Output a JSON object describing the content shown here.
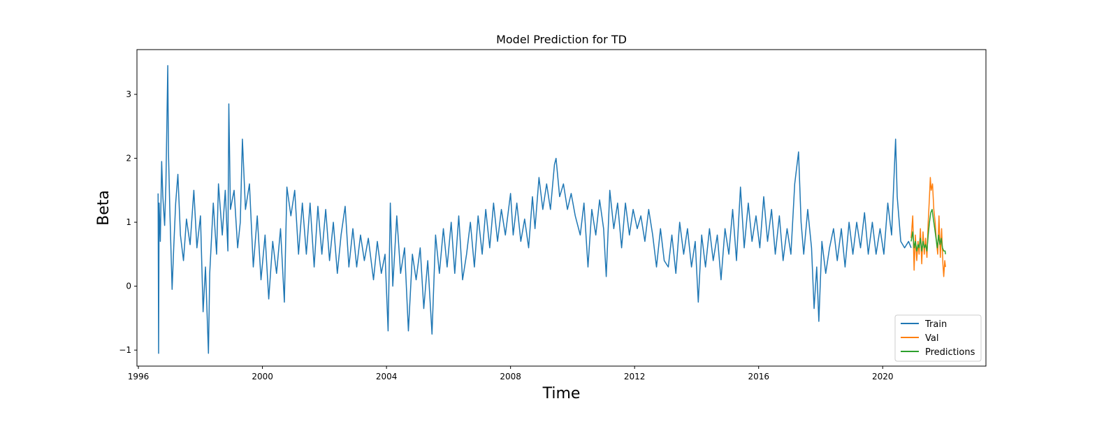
{
  "chart_data": {
    "type": "line",
    "title": "Model Prediction for TD",
    "xlabel": "Time",
    "ylabel": "Beta",
    "xlim": [
      "1995-12-15",
      "2023-05-01"
    ],
    "ylim": [
      -1.25,
      3.7
    ],
    "x_ticks": [
      "1996",
      "2000",
      "2004",
      "2008",
      "2012",
      "2016",
      "2020"
    ],
    "y_ticks": [
      -1,
      0,
      1,
      2,
      3
    ],
    "y_tick_labels": [
      "−1",
      "0",
      "1",
      "2",
      "3"
    ],
    "grid": false,
    "legend_position": "lower-right",
    "series": [
      {
        "name": "Train",
        "color": "#1f77b4",
        "points": [
          [
            "1996-08-20",
            1.45
          ],
          [
            "1996-08-26",
            -1.05
          ],
          [
            "1996-09-01",
            1.3
          ],
          [
            "1996-09-15",
            0.7
          ],
          [
            "1996-10-01",
            1.95
          ],
          [
            "1996-10-15",
            1.4
          ],
          [
            "1996-11-05",
            0.95
          ],
          [
            "1996-11-20",
            1.6
          ],
          [
            "1996-12-05",
            2.85
          ],
          [
            "1996-12-12",
            3.45
          ],
          [
            "1996-12-20",
            2.1
          ],
          [
            "1997-01-05",
            1.2
          ],
          [
            "1997-02-01",
            -0.05
          ],
          [
            "1997-02-20",
            0.6
          ],
          [
            "1997-03-15",
            1.3
          ],
          [
            "1997-04-10",
            1.75
          ],
          [
            "1997-05-10",
            0.8
          ],
          [
            "1997-06-15",
            0.4
          ],
          [
            "1997-07-20",
            1.05
          ],
          [
            "1997-09-01",
            0.65
          ],
          [
            "1997-10-15",
            1.5
          ],
          [
            "1997-11-20",
            0.6
          ],
          [
            "1998-01-01",
            1.1
          ],
          [
            "1998-02-01",
            -0.4
          ],
          [
            "1998-03-01",
            0.3
          ],
          [
            "1998-04-05",
            -1.05
          ],
          [
            "1998-04-20",
            0.2
          ],
          [
            "1998-06-01",
            1.3
          ],
          [
            "1998-07-10",
            0.5
          ],
          [
            "1998-08-01",
            1.6
          ],
          [
            "1998-09-15",
            0.8
          ],
          [
            "1998-10-20",
            1.5
          ],
          [
            "1998-11-20",
            0.55
          ],
          [
            "1998-12-01",
            2.85
          ],
          [
            "1998-12-20",
            1.2
          ],
          [
            "1999-02-01",
            1.5
          ],
          [
            "1999-03-15",
            0.6
          ],
          [
            "1999-04-15",
            1.0
          ],
          [
            "1999-05-10",
            2.3
          ],
          [
            "1999-06-15",
            1.2
          ],
          [
            "1999-08-01",
            1.6
          ],
          [
            "1999-09-15",
            0.3
          ],
          [
            "1999-11-01",
            1.1
          ],
          [
            "1999-12-15",
            0.1
          ],
          [
            "2000-02-01",
            0.8
          ],
          [
            "2000-03-15",
            -0.2
          ],
          [
            "2000-05-01",
            0.7
          ],
          [
            "2000-06-15",
            0.2
          ],
          [
            "2000-08-01",
            0.9
          ],
          [
            "2000-09-15",
            -0.25
          ],
          [
            "2000-10-15",
            1.55
          ],
          [
            "2000-12-01",
            1.1
          ],
          [
            "2001-01-15",
            1.5
          ],
          [
            "2001-03-01",
            0.5
          ],
          [
            "2001-04-15",
            1.3
          ],
          [
            "2001-06-01",
            0.5
          ],
          [
            "2001-07-15",
            1.3
          ],
          [
            "2001-09-01",
            0.3
          ],
          [
            "2001-10-15",
            1.25
          ],
          [
            "2001-12-01",
            0.5
          ],
          [
            "2002-01-15",
            1.2
          ],
          [
            "2002-03-01",
            0.4
          ],
          [
            "2002-04-15",
            1.0
          ],
          [
            "2002-06-01",
            0.2
          ],
          [
            "2002-07-15",
            0.8
          ],
          [
            "2002-09-01",
            1.25
          ],
          [
            "2002-10-15",
            0.3
          ],
          [
            "2002-12-01",
            0.9
          ],
          [
            "2003-01-15",
            0.3
          ],
          [
            "2003-03-01",
            0.8
          ],
          [
            "2003-04-15",
            0.4
          ],
          [
            "2003-06-01",
            0.75
          ],
          [
            "2003-08-01",
            0.1
          ],
          [
            "2003-09-15",
            0.7
          ],
          [
            "2003-11-01",
            0.2
          ],
          [
            "2003-12-15",
            0.5
          ],
          [
            "2004-01-20",
            -0.7
          ],
          [
            "2004-02-15",
            1.3
          ],
          [
            "2004-03-15",
            0.0
          ],
          [
            "2004-05-01",
            1.1
          ],
          [
            "2004-06-15",
            0.2
          ],
          [
            "2004-08-01",
            0.6
          ],
          [
            "2004-09-15",
            -0.7
          ],
          [
            "2004-11-01",
            0.5
          ],
          [
            "2004-12-15",
            0.1
          ],
          [
            "2005-02-01",
            0.6
          ],
          [
            "2005-03-15",
            -0.35
          ],
          [
            "2005-05-01",
            0.4
          ],
          [
            "2005-06-20",
            -0.75
          ],
          [
            "2005-08-01",
            0.8
          ],
          [
            "2005-09-15",
            0.2
          ],
          [
            "2005-11-01",
            0.9
          ],
          [
            "2005-12-15",
            0.3
          ],
          [
            "2006-02-01",
            1.0
          ],
          [
            "2006-03-15",
            0.2
          ],
          [
            "2006-05-01",
            1.1
          ],
          [
            "2006-06-15",
            0.1
          ],
          [
            "2006-08-01",
            0.5
          ],
          [
            "2006-09-15",
            1.0
          ],
          [
            "2006-11-01",
            0.3
          ],
          [
            "2006-12-15",
            1.1
          ],
          [
            "2007-02-01",
            0.5
          ],
          [
            "2007-03-15",
            1.2
          ],
          [
            "2007-05-01",
            0.6
          ],
          [
            "2007-06-15",
            1.3
          ],
          [
            "2007-08-01",
            0.7
          ],
          [
            "2007-09-15",
            1.2
          ],
          [
            "2007-11-01",
            0.8
          ],
          [
            "2008-01-01",
            1.45
          ],
          [
            "2008-02-01",
            0.8
          ],
          [
            "2008-03-15",
            1.3
          ],
          [
            "2008-05-01",
            0.7
          ],
          [
            "2008-06-15",
            1.05
          ],
          [
            "2008-08-01",
            0.6
          ],
          [
            "2008-09-15",
            1.4
          ],
          [
            "2008-10-15",
            0.9
          ],
          [
            "2008-12-01",
            1.7
          ],
          [
            "2009-01-15",
            1.2
          ],
          [
            "2009-03-01",
            1.6
          ],
          [
            "2009-04-15",
            1.2
          ],
          [
            "2009-06-01",
            1.9
          ],
          [
            "2009-06-20",
            2.0
          ],
          [
            "2009-08-01",
            1.4
          ],
          [
            "2009-09-15",
            1.6
          ],
          [
            "2009-11-01",
            1.2
          ],
          [
            "2009-12-15",
            1.45
          ],
          [
            "2010-02-01",
            1.1
          ],
          [
            "2010-04-01",
            0.8
          ],
          [
            "2010-05-15",
            1.3
          ],
          [
            "2010-07-01",
            0.3
          ],
          [
            "2010-08-15",
            1.2
          ],
          [
            "2010-10-01",
            0.8
          ],
          [
            "2010-11-15",
            1.35
          ],
          [
            "2011-01-01",
            0.9
          ],
          [
            "2011-02-01",
            0.15
          ],
          [
            "2011-03-15",
            1.5
          ],
          [
            "2011-05-01",
            0.9
          ],
          [
            "2011-06-15",
            1.3
          ],
          [
            "2011-08-01",
            0.6
          ],
          [
            "2011-09-15",
            1.3
          ],
          [
            "2011-11-01",
            0.8
          ],
          [
            "2011-12-15",
            1.2
          ],
          [
            "2012-02-01",
            0.9
          ],
          [
            "2012-03-15",
            1.1
          ],
          [
            "2012-05-01",
            0.7
          ],
          [
            "2012-06-15",
            1.2
          ],
          [
            "2012-08-01",
            0.8
          ],
          [
            "2012-09-15",
            0.3
          ],
          [
            "2012-11-01",
            0.9
          ],
          [
            "2012-12-15",
            0.4
          ],
          [
            "2013-02-01",
            0.3
          ],
          [
            "2013-03-15",
            0.8
          ],
          [
            "2013-05-01",
            0.2
          ],
          [
            "2013-06-15",
            1.0
          ],
          [
            "2013-08-01",
            0.5
          ],
          [
            "2013-09-15",
            0.9
          ],
          [
            "2013-11-01",
            0.3
          ],
          [
            "2013-12-15",
            0.7
          ],
          [
            "2014-01-20",
            -0.25
          ],
          [
            "2014-03-01",
            0.8
          ],
          [
            "2014-04-15",
            0.3
          ],
          [
            "2014-06-01",
            0.9
          ],
          [
            "2014-07-15",
            0.4
          ],
          [
            "2014-09-01",
            0.8
          ],
          [
            "2014-10-15",
            0.1
          ],
          [
            "2014-12-01",
            0.9
          ],
          [
            "2015-01-15",
            0.5
          ],
          [
            "2015-03-01",
            1.2
          ],
          [
            "2015-04-15",
            0.4
          ],
          [
            "2015-06-01",
            1.55
          ],
          [
            "2015-07-15",
            0.6
          ],
          [
            "2015-09-01",
            1.3
          ],
          [
            "2015-10-15",
            0.7
          ],
          [
            "2015-12-01",
            1.1
          ],
          [
            "2016-01-15",
            0.6
          ],
          [
            "2016-03-01",
            1.4
          ],
          [
            "2016-04-15",
            0.7
          ],
          [
            "2016-06-01",
            1.2
          ],
          [
            "2016-07-15",
            0.5
          ],
          [
            "2016-09-01",
            1.1
          ],
          [
            "2016-10-15",
            0.4
          ],
          [
            "2016-12-01",
            0.9
          ],
          [
            "2017-01-15",
            0.5
          ],
          [
            "2017-03-01",
            1.6
          ],
          [
            "2017-04-15",
            2.1
          ],
          [
            "2017-05-15",
            1.0
          ],
          [
            "2017-06-15",
            0.5
          ],
          [
            "2017-08-01",
            1.2
          ],
          [
            "2017-09-15",
            0.6
          ],
          [
            "2017-10-15",
            -0.35
          ],
          [
            "2017-11-15",
            0.3
          ],
          [
            "2017-12-10",
            -0.55
          ],
          [
            "2018-01-15",
            0.7
          ],
          [
            "2018-03-01",
            0.2
          ],
          [
            "2018-04-15",
            0.6
          ],
          [
            "2018-06-01",
            0.9
          ],
          [
            "2018-07-15",
            0.4
          ],
          [
            "2018-09-01",
            0.9
          ],
          [
            "2018-10-15",
            0.3
          ],
          [
            "2018-12-01",
            1.0
          ],
          [
            "2019-01-15",
            0.5
          ],
          [
            "2019-03-01",
            1.0
          ],
          [
            "2019-04-15",
            0.6
          ],
          [
            "2019-06-01",
            1.15
          ],
          [
            "2019-07-15",
            0.5
          ],
          [
            "2019-09-01",
            1.0
          ],
          [
            "2019-10-15",
            0.5
          ],
          [
            "2019-12-01",
            0.9
          ],
          [
            "2020-01-15",
            0.5
          ],
          [
            "2020-03-01",
            1.3
          ],
          [
            "2020-04-15",
            0.8
          ],
          [
            "2020-06-01",
            2.3
          ],
          [
            "2020-06-20",
            1.4
          ],
          [
            "2020-08-01",
            0.7
          ],
          [
            "2020-09-15",
            0.6
          ],
          [
            "2020-11-01",
            0.7
          ],
          [
            "2020-12-01",
            0.6
          ]
        ]
      },
      {
        "name": "Val",
        "color": "#ff7f0e",
        "points": [
          [
            "2020-12-01",
            0.75
          ],
          [
            "2020-12-20",
            1.1
          ],
          [
            "2021-01-05",
            0.25
          ],
          [
            "2021-01-20",
            0.8
          ],
          [
            "2021-02-05",
            0.4
          ],
          [
            "2021-02-20",
            0.7
          ],
          [
            "2021-03-05",
            0.5
          ],
          [
            "2021-03-20",
            0.9
          ],
          [
            "2021-04-05",
            0.35
          ],
          [
            "2021-04-20",
            0.85
          ],
          [
            "2021-05-05",
            0.5
          ],
          [
            "2021-05-20",
            0.75
          ],
          [
            "2021-06-05",
            0.45
          ],
          [
            "2021-06-20",
            1.0
          ],
          [
            "2021-07-05",
            1.4
          ],
          [
            "2021-07-15",
            1.7
          ],
          [
            "2021-07-25",
            1.5
          ],
          [
            "2021-08-10",
            1.6
          ],
          [
            "2021-08-25",
            1.2
          ],
          [
            "2021-09-10",
            1.0
          ],
          [
            "2021-09-25",
            0.7
          ],
          [
            "2021-10-10",
            0.5
          ],
          [
            "2021-10-25",
            1.1
          ],
          [
            "2021-11-10",
            0.45
          ],
          [
            "2021-11-25",
            0.9
          ],
          [
            "2021-12-10",
            0.35
          ],
          [
            "2021-12-20",
            0.15
          ],
          [
            "2022-01-01",
            0.4
          ],
          [
            "2022-01-10",
            0.3
          ]
        ]
      },
      {
        "name": "Predictions",
        "color": "#2ca02c",
        "points": [
          [
            "2020-12-01",
            0.7
          ],
          [
            "2020-12-20",
            0.85
          ],
          [
            "2021-01-05",
            0.6
          ],
          [
            "2021-01-20",
            0.7
          ],
          [
            "2021-02-05",
            0.55
          ],
          [
            "2021-02-20",
            0.65
          ],
          [
            "2021-03-05",
            0.6
          ],
          [
            "2021-03-20",
            0.75
          ],
          [
            "2021-04-05",
            0.55
          ],
          [
            "2021-04-20",
            0.7
          ],
          [
            "2021-05-05",
            0.6
          ],
          [
            "2021-05-20",
            0.65
          ],
          [
            "2021-06-05",
            0.55
          ],
          [
            "2021-06-20",
            0.8
          ],
          [
            "2021-07-05",
            1.0
          ],
          [
            "2021-07-20",
            1.15
          ],
          [
            "2021-08-05",
            1.2
          ],
          [
            "2021-08-20",
            1.05
          ],
          [
            "2021-09-05",
            0.9
          ],
          [
            "2021-09-20",
            0.75
          ],
          [
            "2021-10-05",
            0.6
          ],
          [
            "2021-10-20",
            0.8
          ],
          [
            "2021-11-05",
            0.65
          ],
          [
            "2021-11-20",
            0.75
          ],
          [
            "2021-12-05",
            0.6
          ],
          [
            "2021-12-20",
            0.55
          ],
          [
            "2022-01-05",
            0.55
          ],
          [
            "2022-01-10",
            0.5
          ]
        ]
      }
    ]
  }
}
